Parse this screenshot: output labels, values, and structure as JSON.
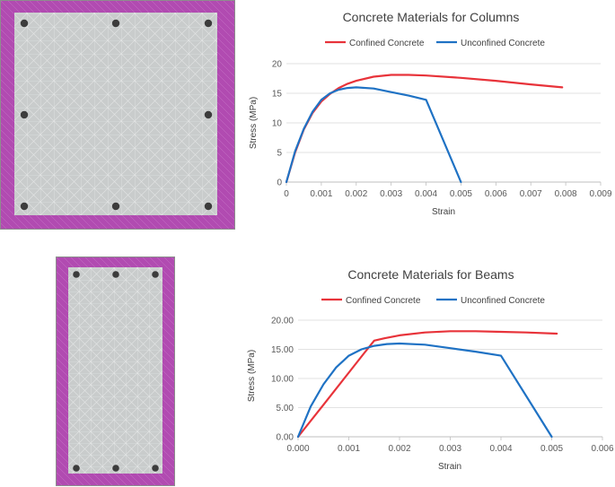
{
  "sections": {
    "column": {
      "rebar_count": 8,
      "colors": {
        "cover": "#b14bb1",
        "core": "#c9cccc",
        "bar": "#3c3c3c"
      }
    },
    "beam": {
      "rebar_count": 6,
      "colors": {
        "cover": "#b14bb1",
        "core": "#c9cccc",
        "bar": "#3c3c3c"
      }
    }
  },
  "chart_data": [
    {
      "type": "line",
      "title": "Concrete Materials for Columns",
      "xlabel": "Strain",
      "ylabel": "Stress (MPa)",
      "xlim": [
        0,
        0.009
      ],
      "ylim": [
        0,
        20
      ],
      "xticks": [
        "0",
        "0.001",
        "0.002",
        "0.003",
        "0.004",
        "0.005",
        "0.006",
        "0.007",
        "0.008",
        "0.009"
      ],
      "yticks": [
        "0",
        "5",
        "10",
        "15",
        "20"
      ],
      "grid": "horizontal",
      "legend": "top-center",
      "series": [
        {
          "name": "Confined Concrete",
          "color": "#e8333a",
          "x": [
            0,
            0.00025,
            0.0005,
            0.00075,
            0.001,
            0.00125,
            0.0015,
            0.00175,
            0.002,
            0.0025,
            0.003,
            0.0035,
            0.004,
            0.005,
            0.006,
            0.007,
            0.0079
          ],
          "y": [
            0,
            5.0,
            8.9,
            11.7,
            13.6,
            14.9,
            15.9,
            16.6,
            17.1,
            17.8,
            18.1,
            18.1,
            18.0,
            17.6,
            17.1,
            16.5,
            16.0
          ]
        },
        {
          "name": "Unconfined Concrete",
          "color": "#1f72c4",
          "x": [
            0,
            0.00025,
            0.0005,
            0.00075,
            0.001,
            0.00125,
            0.0015,
            0.00175,
            0.002,
            0.0025,
            0.003,
            0.0035,
            0.004,
            0.005
          ],
          "y": [
            0,
            5.2,
            9.0,
            11.9,
            13.9,
            15.0,
            15.6,
            15.9,
            16.0,
            15.8,
            15.2,
            14.6,
            13.9,
            0
          ]
        }
      ]
    },
    {
      "type": "line",
      "title": "Concrete Materials for Beams",
      "xlabel": "Strain",
      "ylabel": "Stress (MPa)",
      "xlim": [
        0,
        0.006
      ],
      "ylim": [
        0,
        20
      ],
      "xticks": [
        "0.000",
        "0.001",
        "0.002",
        "0.003",
        "0.004",
        "0.005",
        "0.006"
      ],
      "yticks": [
        "0.00",
        "5.00",
        "10.00",
        "15.00",
        "20.00"
      ],
      "grid": "horizontal",
      "legend": "top-center",
      "series": [
        {
          "name": "Confined Concrete",
          "color": "#e8333a",
          "x": [
            0,
            0.0005,
            0.001,
            0.0013,
            0.0015,
            0.0017,
            0.002,
            0.0025,
            0.003,
            0.0035,
            0.004,
            0.0045,
            0.0051
          ],
          "y": [
            0,
            5.5,
            11.0,
            14.3,
            16.5,
            16.9,
            17.4,
            17.9,
            18.1,
            18.1,
            18.0,
            17.9,
            17.7
          ]
        },
        {
          "name": "Unconfined Concrete",
          "color": "#1f72c4",
          "x": [
            0,
            0.00025,
            0.0005,
            0.00075,
            0.001,
            0.00125,
            0.0015,
            0.00175,
            0.002,
            0.0025,
            0.003,
            0.0035,
            0.004,
            0.005
          ],
          "y": [
            0,
            5.2,
            9.0,
            11.9,
            13.9,
            15.0,
            15.6,
            15.9,
            16.0,
            15.8,
            15.2,
            14.6,
            13.9,
            0
          ]
        }
      ]
    }
  ]
}
